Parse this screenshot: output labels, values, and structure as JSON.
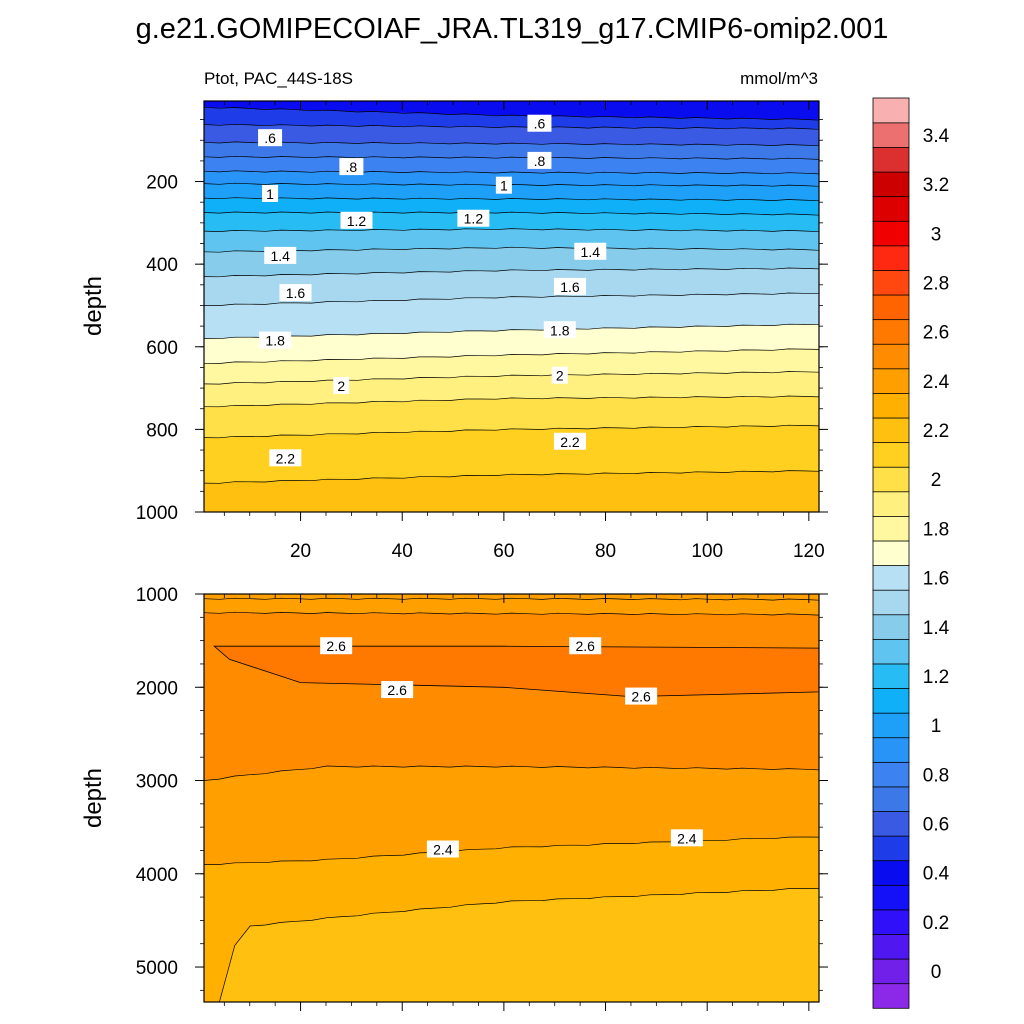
{
  "figure": {
    "title": "g.e21.GOMIPECOIAF_JRA.TL319_g17.CMIP6-omip2.001",
    "variable_region": "Ptot, PAC_44S-18S",
    "units": "mmol/m^3"
  },
  "chart_data": [
    {
      "type": "heatmap",
      "panel": "upper",
      "xlabel": "",
      "ylabel": "depth",
      "xlim": [
        1,
        122
      ],
      "ylim": [
        1000,
        5
      ],
      "y_inverted": true,
      "xticks": [
        20,
        40,
        60,
        80,
        100,
        120
      ],
      "yticks": [
        200,
        400,
        600,
        800,
        1000
      ],
      "contours": [
        {
          "level": 0.5,
          "depth_at": [
            [
              1,
              20
            ],
            [
              60,
              40
            ],
            [
              122,
              50
            ]
          ]
        },
        {
          "level": 0.6,
          "depth_at": [
            [
              1,
              62
            ],
            [
              60,
              68
            ],
            [
              122,
              72
            ]
          ]
        },
        {
          "level": 0.7,
          "depth_at": [
            [
              1,
              105
            ],
            [
              60,
              108
            ],
            [
              122,
              112
            ]
          ]
        },
        {
          "level": 0.8,
          "depth_at": [
            [
              1,
              140
            ],
            [
              60,
              142
            ],
            [
              122,
              145
            ]
          ]
        },
        {
          "level": 0.9,
          "depth_at": [
            [
              1,
              175
            ],
            [
              60,
              178
            ],
            [
              122,
              180
            ]
          ]
        },
        {
          "level": 1.0,
          "depth_at": [
            [
              1,
              205
            ],
            [
              60,
              208
            ],
            [
              122,
              210
            ]
          ]
        },
        {
          "level": 1.1,
          "depth_at": [
            [
              1,
              240
            ],
            [
              60,
              242
            ],
            [
              122,
              245
            ]
          ]
        },
        {
          "level": 1.2,
          "depth_at": [
            [
              1,
              275
            ],
            [
              60,
              275
            ],
            [
              122,
              280
            ]
          ]
        },
        {
          "level": 1.3,
          "depth_at": [
            [
              1,
              320
            ],
            [
              60,
              315
            ],
            [
              122,
              320
            ]
          ]
        },
        {
          "level": 1.4,
          "depth_at": [
            [
              1,
              370
            ],
            [
              60,
              360
            ],
            [
              122,
              365
            ]
          ]
        },
        {
          "level": 1.5,
          "depth_at": [
            [
              1,
              430
            ],
            [
              60,
              415
            ],
            [
              122,
              410
            ]
          ]
        },
        {
          "level": 1.6,
          "depth_at": [
            [
              1,
              500
            ],
            [
              60,
              480
            ],
            [
              122,
              470
            ]
          ]
        },
        {
          "level": 1.7,
          "depth_at": [
            [
              1,
              580
            ],
            [
              60,
              560
            ],
            [
              122,
              545
            ]
          ]
        },
        {
          "level": 1.8,
          "depth_at": [
            [
              1,
              640
            ],
            [
              60,
              620
            ],
            [
              122,
              605
            ]
          ]
        },
        {
          "level": 1.9,
          "depth_at": [
            [
              1,
              690
            ],
            [
              60,
              670
            ],
            [
              122,
              660
            ]
          ]
        },
        {
          "level": 2.0,
          "depth_at": [
            [
              1,
              745
            ],
            [
              60,
              725
            ],
            [
              122,
              720
            ]
          ]
        },
        {
          "level": 2.1,
          "depth_at": [
            [
              1,
              820
            ],
            [
              60,
              800
            ],
            [
              122,
              790
            ]
          ]
        },
        {
          "level": 2.2,
          "depth_at": [
            [
              1,
              930
            ],
            [
              60,
              910
            ],
            [
              122,
              900
            ]
          ]
        }
      ],
      "contour_labels": [
        {
          "text": ".6",
          "x": 14,
          "depth": 95
        },
        {
          "text": ".6",
          "x": 67,
          "depth": 60
        },
        {
          "text": ".8",
          "x": 30,
          "depth": 165
        },
        {
          "text": ".8",
          "x": 67,
          "depth": 150
        },
        {
          "text": "1",
          "x": 14,
          "depth": 230
        },
        {
          "text": "1",
          "x": 60,
          "depth": 210
        },
        {
          "text": "1.2",
          "x": 31,
          "depth": 295
        },
        {
          "text": "1.2",
          "x": 54,
          "depth": 290
        },
        {
          "text": "1.4",
          "x": 16,
          "depth": 380
        },
        {
          "text": "1.4",
          "x": 77,
          "depth": 370
        },
        {
          "text": "1.6",
          "x": 19,
          "depth": 470
        },
        {
          "text": "1.6",
          "x": 73,
          "depth": 455
        },
        {
          "text": "1.8",
          "x": 15,
          "depth": 585
        },
        {
          "text": "1.8",
          "x": 71,
          "depth": 560
        },
        {
          "text": "2",
          "x": 28,
          "depth": 695
        },
        {
          "text": "2",
          "x": 71,
          "depth": 670
        },
        {
          "text": "2.2",
          "x": 17,
          "depth": 870
        },
        {
          "text": "2.2",
          "x": 73,
          "depth": 830
        }
      ]
    },
    {
      "type": "heatmap",
      "panel": "lower",
      "xlabel": "",
      "ylabel": "depth",
      "xlim": [
        1,
        122
      ],
      "ylim": [
        5375,
        1000
      ],
      "y_inverted": true,
      "xticks": [
        20,
        40,
        60,
        80,
        100,
        120
      ],
      "yticks": [
        1000,
        2000,
        3000,
        4000,
        5000
      ],
      "contours": [
        {
          "level": 2.5,
          "depth_at": [
            [
              1,
              1050
            ],
            [
              60,
              1050
            ],
            [
              122,
              1060
            ]
          ]
        },
        {
          "level": 2.55,
          "depth_at": [
            [
              1,
              1200
            ],
            [
              60,
              1210
            ],
            [
              122,
              1220
            ]
          ]
        },
        {
          "level": 2.6,
          "closed": true,
          "depth_at": [
            [
              3,
              1560
            ],
            [
              60,
              1560
            ],
            [
              122,
              1580
            ],
            [
              122,
              2050
            ],
            [
              85,
              2100
            ],
            [
              60,
              2000
            ],
            [
              20,
              1950
            ],
            [
              6,
              1700
            ]
          ]
        },
        {
          "level": 2.5,
          "depth_at": [
            [
              1,
              3000
            ],
            [
              8,
              2950
            ],
            [
              25,
              2850
            ],
            [
              60,
              2850
            ],
            [
              122,
              2880
            ]
          ]
        },
        {
          "level": 2.4,
          "depth_at": [
            [
              1,
              3900
            ],
            [
              25,
              3850
            ],
            [
              60,
              3720
            ],
            [
              122,
              3600
            ]
          ]
        },
        {
          "level": 2.3,
          "depth_at": [
            [
              4,
              5375
            ],
            [
              6,
              4850
            ],
            [
              10,
              4560
            ],
            [
              30,
              4450
            ],
            [
              60,
              4300
            ],
            [
              122,
              4150
            ]
          ]
        }
      ],
      "contour_labels": [
        {
          "text": "2.6",
          "x": 27,
          "depth": 1560
        },
        {
          "text": "2.6",
          "x": 76,
          "depth": 1560
        },
        {
          "text": "2.6",
          "x": 39,
          "depth": 2030
        },
        {
          "text": "2.6",
          "x": 87,
          "depth": 2100
        },
        {
          "text": "2.4",
          "x": 48,
          "depth": 3740
        },
        {
          "text": "2.4",
          "x": 96,
          "depth": 3620
        }
      ]
    }
  ],
  "colorbar": {
    "ticks": [
      "0",
      "0.2",
      "0.4",
      "0.6",
      "0.8",
      "1",
      "1.2",
      "1.4",
      "1.6",
      "1.8",
      "2",
      "2.2",
      "2.4",
      "2.6",
      "2.8",
      "3",
      "3.2",
      "3.4"
    ],
    "levels": [
      -0.1,
      0,
      0.1,
      0.2,
      0.3,
      0.4,
      0.5,
      0.6,
      0.7,
      0.8,
      0.9,
      1.0,
      1.1,
      1.2,
      1.3,
      1.4,
      1.5,
      1.6,
      1.7,
      1.8,
      1.9,
      2.0,
      2.1,
      2.2,
      2.3,
      2.4,
      2.5,
      2.6,
      2.7,
      2.8,
      2.9,
      3.0,
      3.1,
      3.2,
      3.3,
      3.4,
      3.5,
      3.6
    ],
    "colors": [
      "#8c28e8",
      "#7020e8",
      "#5018f0",
      "#3010f8",
      "#1410f8",
      "#0a0cf0",
      "#1e3ce8",
      "#3a5ae4",
      "#3c78e8",
      "#3c82f0",
      "#2894f8",
      "#1ea0f8",
      "#10b0f8",
      "#28bcf4",
      "#60c4f0",
      "#88ccec",
      "#a8d8f0",
      "#b8e0f4",
      "#ffffd0",
      "#fff8a0",
      "#fff080",
      "#ffe048",
      "#ffd020",
      "#ffc010",
      "#ffb000",
      "#ffa000",
      "#ff8c00",
      "#ff7800",
      "#ff6400",
      "#ff4810",
      "#ff2810",
      "#f00000",
      "#dc0000",
      "#cc0000",
      "#dc3030",
      "#ec7070",
      "#f8b0b0"
    ]
  }
}
